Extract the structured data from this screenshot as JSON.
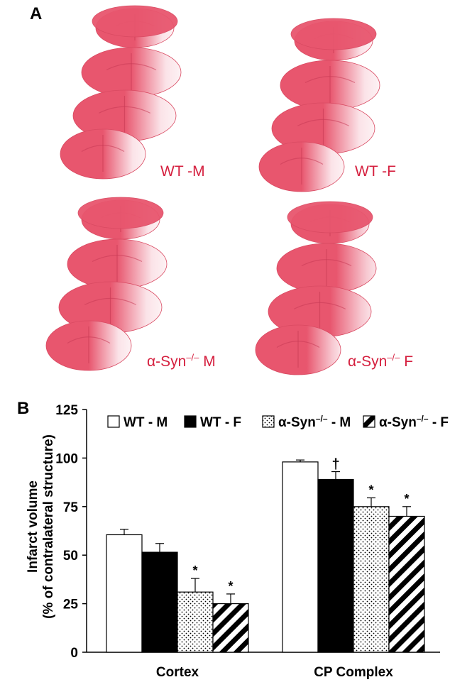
{
  "panel_a": {
    "letter": "A",
    "labels": [
      {
        "prefix": "WT -M",
        "sup": "",
        "suffix": ""
      },
      {
        "prefix": "WT -F",
        "sup": "",
        "suffix": ""
      },
      {
        "prefix": "α-Syn",
        "sup": "–/–",
        "suffix": " M"
      },
      {
        "prefix": "α-Syn",
        "sup": "–/–",
        "suffix": " F"
      }
    ],
    "colors": {
      "tissue": "#e8566e",
      "infarct": "#fbe3e8",
      "label": "#d5203f"
    }
  },
  "panel_b": {
    "letter": "B"
  },
  "chart_data": {
    "type": "bar",
    "categories": [
      "Cortex",
      "CP  Complex"
    ],
    "ylabel_line1": "Infarct volume",
    "ylabel_line2": "(% of contralateral structure)",
    "ylim": [
      0,
      125
    ],
    "yticks": [
      0,
      25,
      50,
      75,
      100,
      125
    ],
    "series": [
      {
        "name": "WT - M",
        "name_prefix": "WT - M",
        "name_sup": "",
        "name_suffix": "",
        "pattern": "white",
        "values": [
          60.5,
          98
        ],
        "errors": [
          2.8,
          1
        ],
        "marks": [
          "",
          ""
        ]
      },
      {
        "name": "WT - F",
        "name_prefix": "WT - F",
        "name_sup": "",
        "name_suffix": "",
        "pattern": "black",
        "values": [
          51.5,
          89
        ],
        "errors": [
          4.5,
          4
        ],
        "marks": [
          "",
          "†"
        ]
      },
      {
        "name": "α-Syn–/– - M",
        "name_prefix": "α-Syn",
        "name_sup": "–/–",
        "name_suffix": " - M",
        "pattern": "dots",
        "values": [
          31,
          75
        ],
        "errors": [
          7,
          4.5
        ],
        "marks": [
          "*",
          "*"
        ]
      },
      {
        "name": "α-Syn–/– - F",
        "name_prefix": "α-Syn",
        "name_sup": "–/–",
        "name_suffix": " - F",
        "pattern": "stripes",
        "values": [
          25,
          70
        ],
        "errors": [
          5,
          5
        ],
        "marks": [
          "*",
          "*"
        ]
      }
    ],
    "legend_position": "top"
  }
}
